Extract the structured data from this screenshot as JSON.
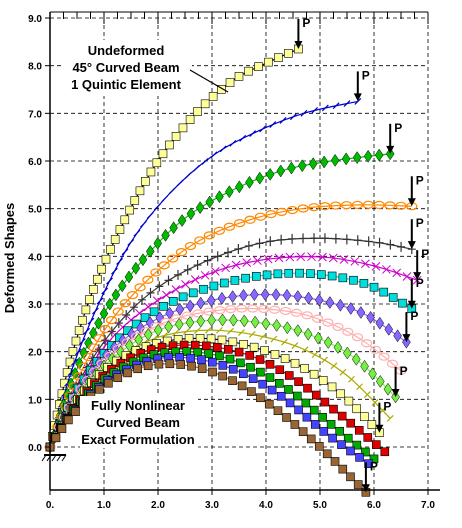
{
  "chart_data": {
    "type": "line",
    "title": "",
    "xlabel": "",
    "ylabel": "Deformed Shapes",
    "xlim": [
      0,
      7
    ],
    "ylim": [
      -0.5,
      9
    ],
    "x_ticks": [
      "0.",
      "1.0",
      "2.0",
      "3.0",
      "4.0",
      "5.0",
      "6.0",
      "7.0"
    ],
    "y_ticks": [
      "0.0",
      "1.0",
      "2.0",
      "3.0",
      "4.0",
      "5.0",
      "6.0",
      "7.0",
      "8.0",
      "9.0"
    ],
    "grid": "dashed vertical and horizontal lines at major ticks",
    "annotations": {
      "undeformed": [
        "Undeformed",
        "45° Curved Beam",
        "1 Quintic Element"
      ],
      "nonlinear": [
        "Fully Nonlinear",
        "Curved Beam",
        "Exact Formulation"
      ],
      "load_label": "P"
    },
    "series": [
      {
        "color": "#000000",
        "marker": "square",
        "points": [
          [
            0,
            0
          ],
          [
            0.35,
            1.7
          ],
          [
            0.8,
            3.3
          ],
          [
            1.4,
            4.8
          ],
          [
            2.0,
            6.0
          ],
          [
            2.7,
            7.0
          ],
          [
            3.4,
            7.7
          ],
          [
            4.0,
            8.05
          ],
          [
            4.6,
            8.35
          ]
        ]
      },
      {
        "color": "#0000cc",
        "marker": "tick",
        "points": [
          [
            0,
            0
          ],
          [
            0.4,
            1.6
          ],
          [
            0.9,
            3.0
          ],
          [
            1.5,
            4.3
          ],
          [
            2.2,
            5.3
          ],
          [
            3.0,
            6.1
          ],
          [
            3.8,
            6.6
          ],
          [
            4.7,
            7.0
          ],
          [
            5.7,
            7.25
          ]
        ]
      },
      {
        "color": "#00bb00",
        "marker": "diamond",
        "points": [
          [
            0,
            0
          ],
          [
            0.45,
            1.5
          ],
          [
            1.0,
            2.8
          ],
          [
            1.7,
            3.9
          ],
          [
            2.5,
            4.8
          ],
          [
            3.4,
            5.4
          ],
          [
            4.3,
            5.8
          ],
          [
            5.2,
            6.0
          ],
          [
            6.3,
            6.15
          ]
        ]
      },
      {
        "color": "#ff8800",
        "marker": "circle",
        "points": [
          [
            0,
            0
          ],
          [
            0.5,
            1.4
          ],
          [
            1.1,
            2.6
          ],
          [
            1.9,
            3.6
          ],
          [
            2.8,
            4.35
          ],
          [
            3.8,
            4.8
          ],
          [
            4.8,
            5.02
          ],
          [
            5.8,
            5.08
          ],
          [
            6.7,
            5.05
          ]
        ]
      },
      {
        "color": "#333333",
        "marker": "cross",
        "points": [
          [
            0,
            0
          ],
          [
            0.5,
            1.3
          ],
          [
            1.2,
            2.5
          ],
          [
            2.0,
            3.35
          ],
          [
            3.0,
            3.95
          ],
          [
            4.0,
            4.3
          ],
          [
            5.0,
            4.38
          ],
          [
            6.0,
            4.3
          ],
          [
            6.7,
            4.15
          ]
        ]
      },
      {
        "color": "#cc00cc",
        "marker": "x",
        "points": [
          [
            0,
            0
          ],
          [
            0.5,
            1.25
          ],
          [
            1.2,
            2.35
          ],
          [
            2.1,
            3.15
          ],
          [
            3.1,
            3.7
          ],
          [
            4.1,
            3.95
          ],
          [
            5.1,
            3.98
          ],
          [
            6.0,
            3.8
          ],
          [
            6.8,
            3.5
          ]
        ]
      },
      {
        "color": "#00dddd",
        "marker": "square",
        "points": [
          [
            0,
            0
          ],
          [
            0.5,
            1.2
          ],
          [
            1.2,
            2.2
          ],
          [
            2.1,
            2.95
          ],
          [
            3.1,
            3.4
          ],
          [
            4.1,
            3.62
          ],
          [
            5.0,
            3.62
          ],
          [
            5.9,
            3.4
          ],
          [
            6.7,
            2.9
          ]
        ]
      },
      {
        "color": "#8866ff",
        "marker": "diamond",
        "points": [
          [
            0,
            0
          ],
          [
            0.5,
            1.15
          ],
          [
            1.2,
            2.1
          ],
          [
            2.1,
            2.75
          ],
          [
            3.1,
            3.1
          ],
          [
            4.0,
            3.2
          ],
          [
            4.9,
            3.1
          ],
          [
            5.8,
            2.8
          ],
          [
            6.6,
            2.2
          ]
        ]
      },
      {
        "color": "#ffb0b0",
        "marker": "circle",
        "points": [
          [
            0,
            0
          ],
          [
            0.5,
            1.1
          ],
          [
            1.2,
            2.0
          ],
          [
            2.1,
            2.6
          ],
          [
            3.0,
            2.85
          ],
          [
            3.9,
            2.9
          ],
          [
            4.8,
            2.75
          ],
          [
            5.7,
            2.3
          ],
          [
            6.5,
            1.6
          ]
        ]
      },
      {
        "color": "#77ee44",
        "marker": "diamond",
        "points": [
          [
            0,
            0
          ],
          [
            0.5,
            1.05
          ],
          [
            1.2,
            1.9
          ],
          [
            2.0,
            2.45
          ],
          [
            2.9,
            2.65
          ],
          [
            3.8,
            2.62
          ],
          [
            4.7,
            2.4
          ],
          [
            5.6,
            1.9
          ],
          [
            6.4,
            1.05
          ]
        ]
      },
      {
        "color": "#aaaa00",
        "marker": "tick",
        "points": [
          [
            0,
            0
          ],
          [
            0.5,
            1.0
          ],
          [
            1.2,
            1.8
          ],
          [
            2.0,
            2.3
          ],
          [
            2.9,
            2.45
          ],
          [
            3.8,
            2.35
          ],
          [
            4.7,
            2.05
          ],
          [
            5.5,
            1.5
          ],
          [
            6.3,
            0.6
          ]
        ]
      },
      {
        "color": "#000000",
        "marker": "square",
        "points": [
          [
            0,
            0
          ],
          [
            0.45,
            0.9
          ],
          [
            1.1,
            1.7
          ],
          [
            1.9,
            2.15
          ],
          [
            2.8,
            2.28
          ],
          [
            3.7,
            2.12
          ],
          [
            4.6,
            1.72
          ],
          [
            5.4,
            1.1
          ],
          [
            6.1,
            0.3
          ]
        ]
      },
      {
        "color": "#dd0000",
        "marker": "square",
        "points": [
          [
            0,
            0
          ],
          [
            0.45,
            0.85
          ],
          [
            1.1,
            1.6
          ],
          [
            1.9,
            2.05
          ],
          [
            2.8,
            2.13
          ],
          [
            3.7,
            1.92
          ],
          [
            4.5,
            1.45
          ],
          [
            5.3,
            0.75
          ],
          [
            6.2,
            -0.1
          ]
        ]
      },
      {
        "color": "#00aa00",
        "marker": "square",
        "points": [
          [
            0,
            0
          ],
          [
            0.45,
            0.8
          ],
          [
            1.1,
            1.5
          ],
          [
            1.9,
            1.93
          ],
          [
            2.8,
            1.98
          ],
          [
            3.6,
            1.73
          ],
          [
            4.4,
            1.22
          ],
          [
            5.2,
            0.48
          ],
          [
            6.0,
            -0.25
          ]
        ]
      },
      {
        "color": "#4444ff",
        "marker": "square",
        "points": [
          [
            0,
            0
          ],
          [
            0.45,
            0.75
          ],
          [
            1.1,
            1.42
          ],
          [
            1.9,
            1.83
          ],
          [
            2.7,
            1.85
          ],
          [
            3.5,
            1.58
          ],
          [
            4.3,
            1.05
          ],
          [
            5.1,
            0.3
          ],
          [
            5.9,
            -0.35
          ]
        ]
      },
      {
        "color": "#996633",
        "marker": "square",
        "points": [
          [
            0,
            0
          ],
          [
            0.4,
            0.65
          ],
          [
            1.0,
            1.28
          ],
          [
            1.8,
            1.7
          ],
          [
            2.6,
            1.7
          ],
          [
            3.4,
            1.38
          ],
          [
            4.2,
            0.78
          ],
          [
            5.0,
            0.0
          ],
          [
            5.85,
            -0.95
          ]
        ]
      }
    ]
  }
}
